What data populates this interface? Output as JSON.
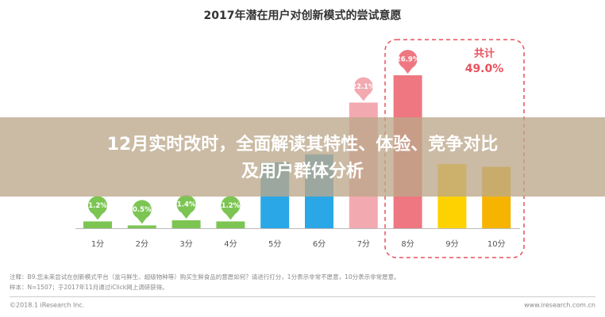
{
  "chart_data": {
    "type": "bar",
    "title": "2017年潜在用户对创新模式的尝试意愿",
    "categories": [
      "1分",
      "2分",
      "3分",
      "4分",
      "5分",
      "6分",
      "7分",
      "8分",
      "9分",
      "10分"
    ],
    "values": [
      1.2,
      0.5,
      1.4,
      1.2,
      11.6,
      13.0,
      22.1,
      26.9,
      11.3,
      10.8
    ],
    "value_labels": [
      "1.2%",
      "0.5%",
      "1.4%",
      "1.2%",
      null,
      null,
      "22.1%",
      "26.9%",
      null,
      null
    ],
    "colors": [
      "#7cc553",
      "#7cc553",
      "#7cc553",
      "#7cc553",
      "#2aa7e6",
      "#2aa7e6",
      "#f3a9b0",
      "#ee7781",
      "#fdd200",
      "#f6b400"
    ],
    "annotation": {
      "title": "共计",
      "value": 49.0,
      "label": "49.0%"
    },
    "notes": [
      "注释：B9.您未来尝试在创新模式平台（盒马鲜生、超级物种等）购买生鲜食品的意愿如何？请进行打分，1分表示非常不愿意，10分表示非常愿意。",
      "样本：N=1507；于2017年11月通过iClick网上调研获得。"
    ],
    "source": "©2018.1 iResearch Inc.",
    "website": "www.iresearch.com.cn"
  },
  "banner": {
    "lines": [
      "12月实时改时，全面解读其特性、体验、竞争对比",
      "及用户群体分析"
    ]
  }
}
